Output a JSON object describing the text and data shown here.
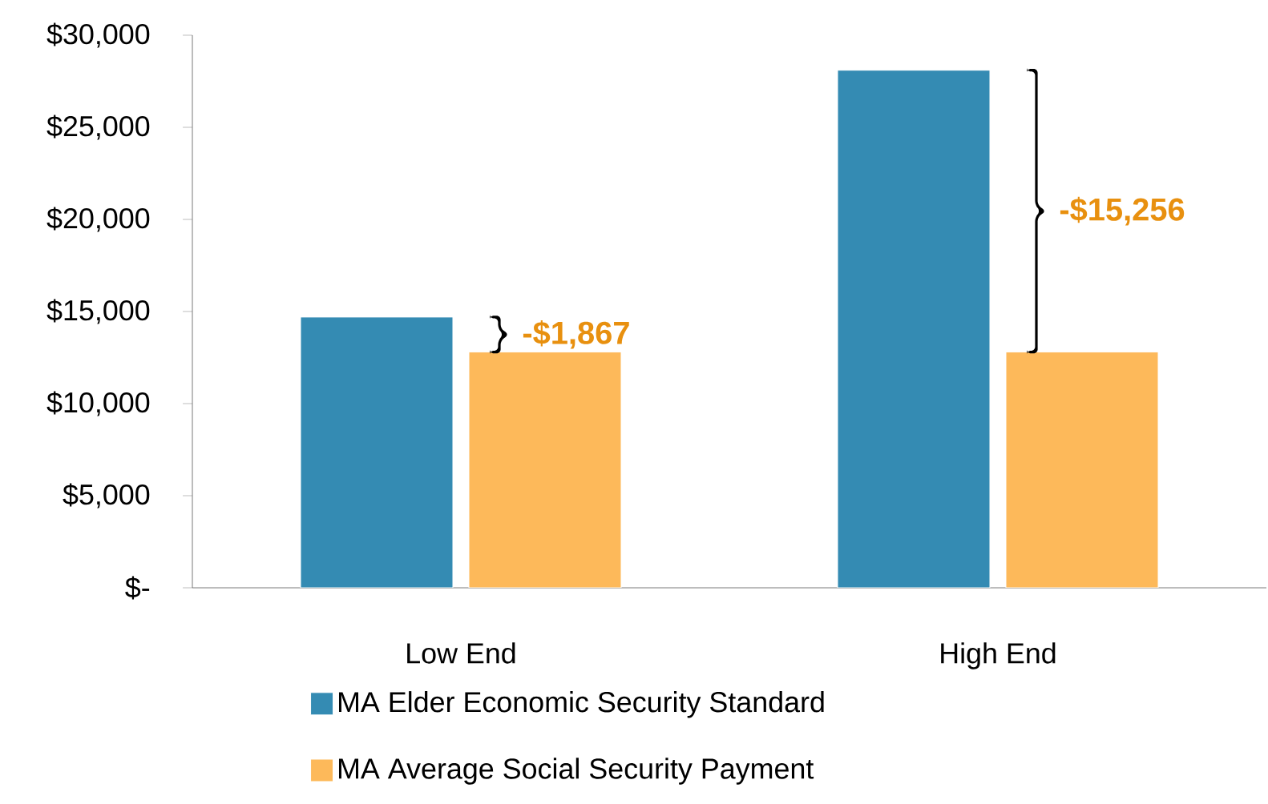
{
  "chart_data": {
    "type": "bar",
    "categories": [
      "Low End",
      "High End"
    ],
    "series": [
      {
        "name": "MA Elder Economic Security Standard",
        "color": "#348bb3",
        "values": [
          14700,
          28100
        ]
      },
      {
        "name": "MA Average Social Security Payment",
        "color": "#fdb95a",
        "values": [
          12800,
          12800
        ]
      }
    ],
    "ylim": [
      0,
      30000
    ],
    "yticks": [
      {
        "value": 0,
        "label": "$-"
      },
      {
        "value": 5000,
        "label": "$5,000"
      },
      {
        "value": 10000,
        "label": "$10,000"
      },
      {
        "value": 15000,
        "label": "$15,000"
      },
      {
        "value": 20000,
        "label": "$20,000"
      },
      {
        "value": 25000,
        "label": "$25,000"
      },
      {
        "value": 30000,
        "label": "$30,000"
      }
    ],
    "annotations": [
      "-$1,867",
      "-$15,256"
    ],
    "grid": false,
    "legend": "bottom"
  }
}
